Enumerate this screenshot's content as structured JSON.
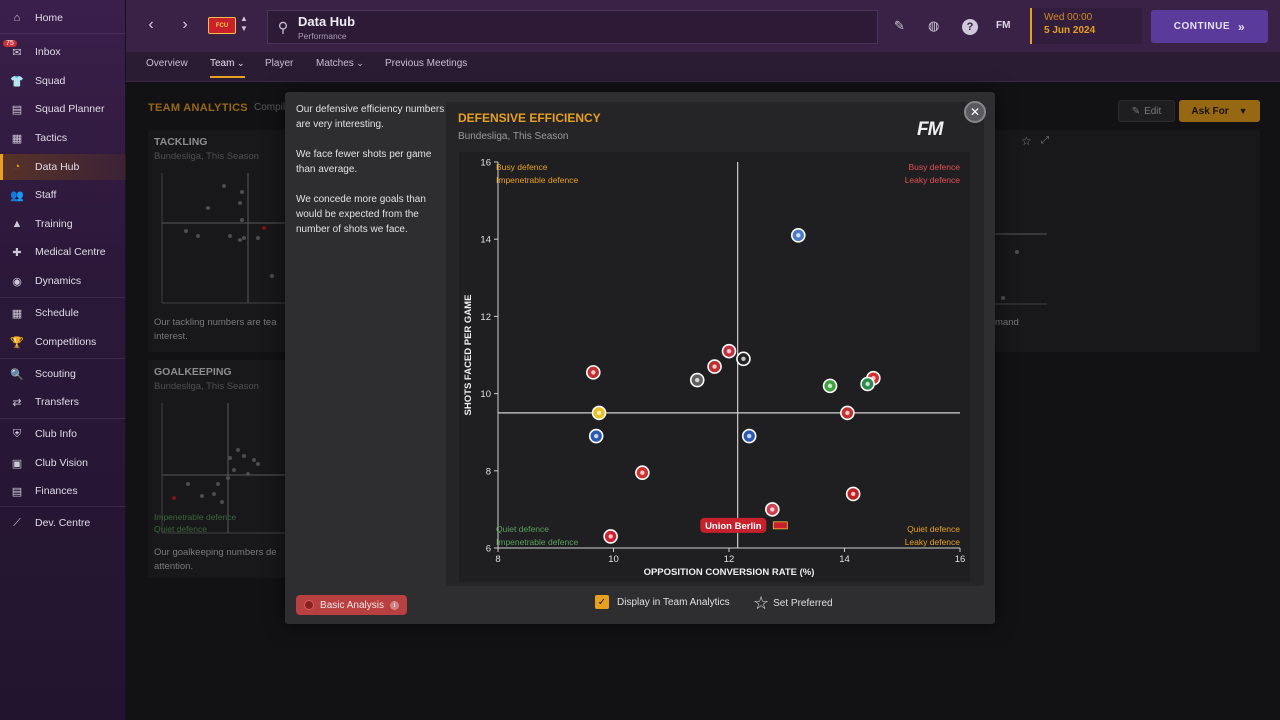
{
  "sidebar": {
    "inbox_count": "75",
    "items": [
      {
        "label": "Home",
        "icon": "home-icon",
        "glyph": "⌂"
      },
      {
        "label": "Inbox",
        "icon": "inbox-icon",
        "glyph": "✉"
      },
      {
        "label": "Squad",
        "icon": "squad-icon",
        "glyph": "👕"
      },
      {
        "label": "Squad Planner",
        "icon": "squad-planner-icon",
        "glyph": "▤"
      },
      {
        "label": "Tactics",
        "icon": "tactics-icon",
        "glyph": "▦"
      },
      {
        "label": "Data Hub",
        "icon": "data-hub-icon",
        "glyph": "◔"
      },
      {
        "label": "Staff",
        "icon": "staff-icon",
        "glyph": "👥"
      },
      {
        "label": "Training",
        "icon": "training-icon",
        "glyph": "▲"
      },
      {
        "label": "Medical Centre",
        "icon": "medical-icon",
        "glyph": "✚"
      },
      {
        "label": "Dynamics",
        "icon": "dynamics-icon",
        "glyph": "◉"
      },
      {
        "label": "Schedule",
        "icon": "schedule-icon",
        "glyph": "▦"
      },
      {
        "label": "Competitions",
        "icon": "trophy-icon",
        "glyph": "🏆"
      },
      {
        "label": "Scouting",
        "icon": "scouting-icon",
        "glyph": "🔍"
      },
      {
        "label": "Transfers",
        "icon": "transfers-icon",
        "glyph": "⇄"
      },
      {
        "label": "Club Info",
        "icon": "shield-icon",
        "glyph": "⛨"
      },
      {
        "label": "Club Vision",
        "icon": "vision-icon",
        "glyph": "▣"
      },
      {
        "label": "Finances",
        "icon": "finances-icon",
        "glyph": "▤"
      },
      {
        "label": "Dev. Centre",
        "icon": "dev-centre-icon",
        "glyph": "⟋"
      }
    ]
  },
  "topbar": {
    "title": "Data Hub",
    "subtitle": "Performance",
    "club_badge_text": "FCU",
    "fm_label": "FM",
    "date_line1": "Wed 00:00",
    "date_line2": "5 Jun 2024",
    "continue_label": "CONTINUE"
  },
  "tabs": [
    {
      "label": "Overview"
    },
    {
      "label": "Team",
      "dropdown": true,
      "active": true
    },
    {
      "label": "Player"
    },
    {
      "label": "Matches",
      "dropdown": true
    },
    {
      "label": "Previous Meetings"
    }
  ],
  "main": {
    "title": "TEAM ANALYTICS",
    "subtitle": "Compil",
    "edit_label": "Edit",
    "askfor_label": "Ask For",
    "tackling": {
      "title": "TACKLING",
      "sub": "Bundesliga, This Season",
      "text1": "Our tackling numbers are tea",
      "text2": "interest."
    },
    "goalkeeping": {
      "title": "GOALKEEPING",
      "sub": "Bundesliga, This Season",
      "text1": "Our goalkeeping numbers de",
      "text2": "attention.",
      "label1": "Impenetrable defence",
      "label2": "Quiet defence"
    },
    "right_card_text": "mand"
  },
  "modal": {
    "insights": [
      "Our defensive efficiency numbers are very interesting.",
      "We face fewer shots per game than average.",
      "We concede more goals than would be expected from the number of shots we face."
    ],
    "basic_analysis_label": "Basic Analysis",
    "display_label": "Display in Team Analytics",
    "set_preferred_label": "Set Preferred",
    "fm_logo": "FM"
  },
  "chart_data": {
    "type": "scatter",
    "title": "DEFENSIVE EFFICIENCY",
    "subtitle": "Bundesliga, This Season",
    "xlabel": "OPPOSITION CONVERSION RATE (%)",
    "ylabel": "SHOTS FACED PER GAME",
    "xlim": [
      8,
      16
    ],
    "ylim": [
      6,
      16
    ],
    "xticks": [
      8,
      10,
      12,
      14,
      16
    ],
    "yticks": [
      6,
      8,
      10,
      12,
      14,
      16
    ],
    "avg_x": 12.15,
    "avg_y": 9.5,
    "quadrant_labels": {
      "top_left": [
        "Busy defence",
        "Impenetrable defence"
      ],
      "top_right": [
        "Busy defence",
        "Leaky defence"
      ],
      "bottom_left": [
        "Quiet defence",
        "Impenetrable defence"
      ],
      "bottom_right": [
        "Quiet defence",
        "Leaky defence"
      ]
    },
    "highlight": "Union Berlin",
    "points": [
      {
        "x": 13.2,
        "y": 14.1,
        "color": "#4a7ac8"
      },
      {
        "x": 12.0,
        "y": 11.1,
        "color": "#c03040"
      },
      {
        "x": 12.25,
        "y": 10.9,
        "color": "#222222"
      },
      {
        "x": 11.75,
        "y": 10.7,
        "color": "#c03030"
      },
      {
        "x": 11.45,
        "y": 10.35,
        "color": "#606060"
      },
      {
        "x": 9.65,
        "y": 10.55,
        "color": "#c03030"
      },
      {
        "x": 13.75,
        "y": 10.2,
        "color": "#40a040"
      },
      {
        "x": 14.5,
        "y": 10.4,
        "color": "#d03030"
      },
      {
        "x": 14.4,
        "y": 10.25,
        "color": "#2a8a4a"
      },
      {
        "x": 14.05,
        "y": 9.5,
        "color": "#c03030"
      },
      {
        "x": 9.75,
        "y": 9.5,
        "color": "#e8c020"
      },
      {
        "x": 9.7,
        "y": 8.9,
        "color": "#2a5ab0"
      },
      {
        "x": 12.35,
        "y": 8.9,
        "color": "#2a5ab0"
      },
      {
        "x": 10.5,
        "y": 7.95,
        "color": "#d03030"
      },
      {
        "x": 14.15,
        "y": 7.4,
        "color": "#c02020"
      },
      {
        "x": 12.75,
        "y": 7.0,
        "color": "#d04050"
      },
      {
        "x": 12.75,
        "y": 6.6,
        "color": "#c8202c",
        "label": "Union Berlin"
      },
      {
        "x": 9.95,
        "y": 6.3,
        "color": "#d02030"
      }
    ]
  }
}
